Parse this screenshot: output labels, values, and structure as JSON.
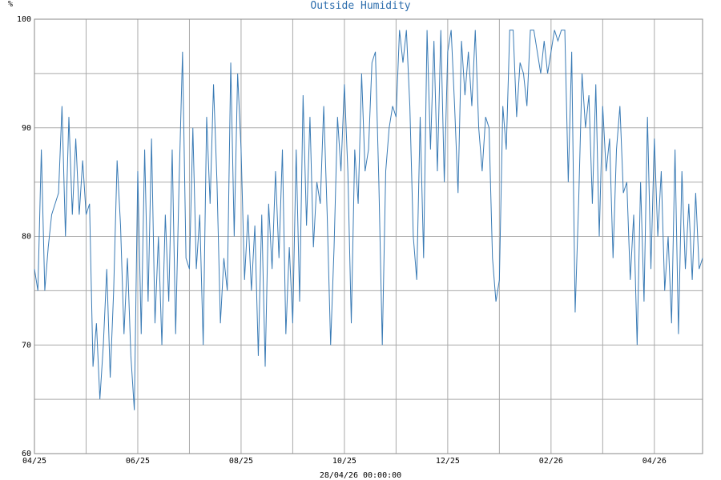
{
  "chart_data": {
    "type": "line",
    "title": "Outside Humidity",
    "y_unit_label": "%",
    "footer": "28/04/26 00:00:00",
    "color": "#3a7bb5",
    "grid": true,
    "series": [
      {
        "name": "Outside Humidity",
        "color": "#3a7bb5",
        "values": [
          77,
          75,
          88,
          75,
          79,
          82,
          83,
          84,
          92,
          80,
          91,
          82,
          89,
          82,
          87,
          82,
          83,
          68,
          72,
          65,
          70,
          77,
          67,
          75,
          87,
          81,
          71,
          78,
          69,
          64,
          86,
          71,
          88,
          74,
          89,
          72,
          80,
          70,
          82,
          74,
          88,
          71,
          85,
          97,
          78,
          77,
          90,
          77,
          82,
          70,
          91,
          83,
          94,
          85,
          72,
          78,
          75,
          96,
          80,
          95,
          88,
          76,
          82,
          75,
          81,
          69,
          82,
          68,
          83,
          77,
          86,
          78,
          88,
          71,
          79,
          72,
          88,
          74,
          93,
          81,
          91,
          79,
          85,
          83,
          92,
          82,
          70,
          79,
          91,
          86,
          94,
          86,
          72,
          88,
          83,
          95,
          86,
          88,
          96,
          97,
          85,
          70,
          86,
          90,
          92,
          91,
          99,
          96,
          99,
          92,
          80,
          76,
          91,
          78,
          99,
          88,
          98,
          86,
          99,
          85,
          97,
          99,
          92,
          84,
          98,
          93,
          97,
          92,
          99,
          90,
          86,
          91,
          90,
          78,
          74,
          76,
          92,
          88,
          99,
          99,
          91,
          96,
          95,
          92,
          99,
          99,
          97,
          95,
          98,
          95,
          97,
          99,
          98,
          99,
          99,
          85,
          97,
          73,
          83,
          95,
          90,
          93,
          83,
          94,
          80,
          92,
          86,
          89,
          78,
          88,
          92,
          84,
          85,
          76,
          82,
          70,
          85,
          74,
          91,
          77,
          89,
          80,
          86,
          75,
          80,
          72,
          88,
          71,
          86,
          77,
          83,
          76,
          84,
          77,
          78
        ]
      }
    ],
    "xlim": [
      0,
      194
    ],
    "xticks": [
      {
        "value": 0,
        "label": "04/25"
      },
      {
        "value": 30,
        "label": "06/25"
      },
      {
        "value": 60,
        "label": "08/25"
      },
      {
        "value": 90,
        "label": "10/25"
      },
      {
        "value": 120,
        "label": "12/25"
      },
      {
        "value": 150,
        "label": "02/26"
      },
      {
        "value": 180,
        "label": "04/26"
      }
    ],
    "minor_xticks": [
      15,
      45,
      75,
      105,
      135,
      165,
      194
    ],
    "ylim": [
      60,
      100
    ],
    "yticks": [
      60,
      70,
      80,
      90,
      100
    ],
    "minor_yticks": [
      65,
      75,
      85,
      95
    ]
  }
}
